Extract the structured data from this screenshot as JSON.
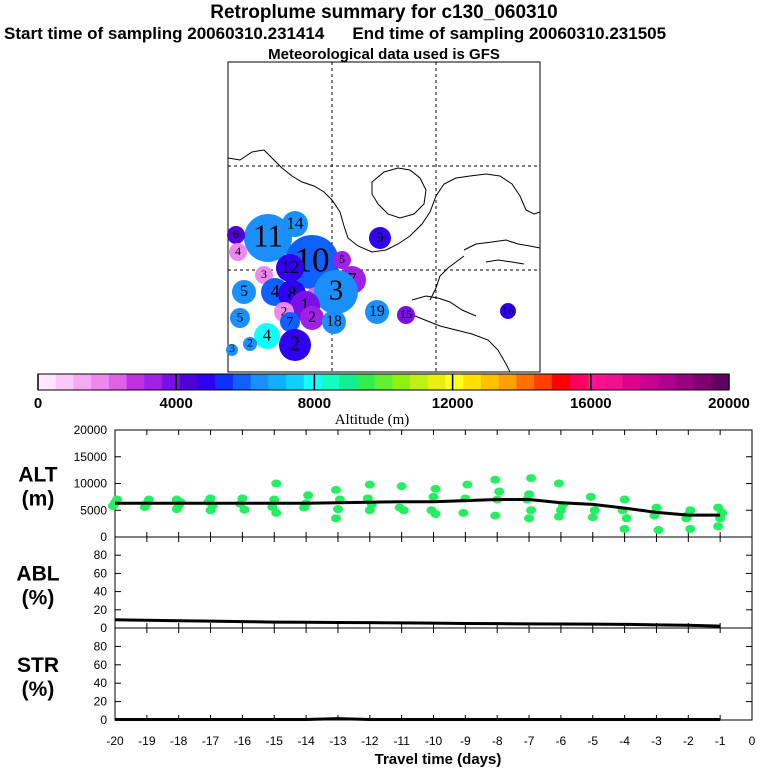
{
  "title": "Retroplume summary for c130_060310",
  "start_label": "Start time of sampling 20060310.231414",
  "end_label": "End time of sampling 20060310.231505",
  "met_label": "Meteorological data used is GFS",
  "colorbar": {
    "xlabel": "Altitude (m)",
    "ticks": [
      "0",
      "4000",
      "8000",
      "12000",
      "16000",
      "20000"
    ],
    "colors": [
      "#ffe6ff",
      "#fbc8fb",
      "#f5aaf5",
      "#ee88ee",
      "#e060e8",
      "#c030e0",
      "#a020e8",
      "#7a10e8",
      "#5000d8",
      "#3000f0",
      "#1030ff",
      "#1060ff",
      "#1a90ff",
      "#10b0ff",
      "#10d0ff",
      "#10ffff",
      "#10ffc0",
      "#10f090",
      "#30f050",
      "#60f030",
      "#90f010",
      "#c0f010",
      "#e8f010",
      "#ffff20",
      "#ffe000",
      "#ffc000",
      "#ffa000",
      "#ff7000",
      "#ff4000",
      "#ff0000",
      "#ff0060",
      "#ff1090",
      "#f01090",
      "#e00090",
      "#c80090",
      "#b00090",
      "#9a0080",
      "#800070",
      "#600060"
    ]
  },
  "map_labels": [
    {
      "n": "11",
      "c": "#1a90ff",
      "r": 24
    },
    {
      "n": "14",
      "c": "#1a90ff",
      "r": 13
    },
    {
      "n": "6",
      "c": "#5000d8",
      "r": 9
    },
    {
      "n": "4",
      "c": "#ee88ee",
      "r": 9
    },
    {
      "n": "10",
      "c": "#1060ff",
      "r": 27
    },
    {
      "n": "9",
      "c": "#3000f0",
      "r": 11
    },
    {
      "n": "3",
      "c": "#ee88ee",
      "r": 9
    },
    {
      "n": "12",
      "c": "#3000f0",
      "r": 14
    },
    {
      "n": "5",
      "c": "#a020e8",
      "r": 9
    },
    {
      "n": "7",
      "c": "#a020e8",
      "r": 14
    },
    {
      "n": "5",
      "c": "#1a90ff",
      "r": 12
    },
    {
      "n": "4",
      "c": "#1060ff",
      "r": 14
    },
    {
      "n": "8",
      "c": "#3000f0",
      "r": 14
    },
    {
      "n": "1",
      "c": "#e060e8",
      "r": 11
    },
    {
      "n": "3",
      "c": "#1a90ff",
      "r": 22
    },
    {
      "n": "1",
      "c": "#7a10e8",
      "r": 15
    },
    {
      "n": "5",
      "c": "#1a90ff",
      "r": 10
    },
    {
      "n": "2",
      "c": "#ee88ee",
      "r": 10
    },
    {
      "n": "7",
      "c": "#1060ff",
      "r": 10
    },
    {
      "n": "2",
      "c": "#a020e8",
      "r": 12
    },
    {
      "n": "18",
      "c": "#1a90ff",
      "r": 12
    },
    {
      "n": "19",
      "c": "#1a90ff",
      "r": 12
    },
    {
      "n": "15",
      "c": "#7a10e8",
      "r": 9
    },
    {
      "n": "16",
      "c": "#3000f0",
      "r": 8
    },
    {
      "n": "4",
      "c": "#10ffff",
      "r": 13
    },
    {
      "n": "2",
      "c": "#3000f0",
      "r": 16
    },
    {
      "n": "2",
      "c": "#1a90ff",
      "r": 7
    },
    {
      "n": "3",
      "c": "#1a90ff",
      "r": 6
    }
  ],
  "chart_data": [
    {
      "type": "scatter",
      "panel": "ALT",
      "ylabel_line1": "ALT",
      "ylabel_line2": "(m)",
      "ylim": [
        0,
        20000
      ],
      "yticks": [
        "0",
        "5000",
        "10000",
        "15000",
        "20000"
      ],
      "xlim": [
        -20,
        0
      ],
      "median_line": {
        "x": [
          -20,
          -19,
          -18,
          -17,
          -16,
          -15,
          -14,
          -13,
          -12,
          -11,
          -10,
          -9,
          -8,
          -7,
          -6,
          -5,
          -4,
          -3,
          -2,
          -1
        ],
        "y": [
          6300,
          6300,
          6300,
          6300,
          6300,
          6300,
          6300,
          6400,
          6500,
          6600,
          6600,
          6800,
          7000,
          7000,
          6400,
          6100,
          5400,
          4600,
          4100,
          4100
        ]
      },
      "points_x": [
        -20,
        -20,
        -20,
        -19,
        -19,
        -19,
        -18,
        -18,
        -18,
        -18,
        -17,
        -17,
        -17,
        -17,
        -16,
        -16,
        -16,
        -15,
        -15,
        -15,
        -15,
        -14,
        -14,
        -14,
        -13,
        -13,
        -13,
        -13,
        -12,
        -12,
        -12,
        -12,
        -11,
        -11,
        -11,
        -10,
        -10,
        -10,
        -10,
        -9,
        -9,
        -9,
        -8,
        -8,
        -8,
        -8,
        -7,
        -7,
        -7,
        -7,
        -7,
        -6,
        -6,
        -6,
        -6,
        -5,
        -5,
        -5,
        -4,
        -4,
        -4,
        -4,
        -3,
        -3,
        -3,
        -2,
        -2,
        -2,
        -2,
        -1,
        -1,
        -1,
        -1
      ],
      "points_y": [
        5800,
        6400,
        7000,
        5600,
        6300,
        7000,
        5200,
        5900,
        6500,
        7000,
        5000,
        5900,
        6600,
        7200,
        5100,
        6200,
        7200,
        4500,
        5600,
        7000,
        10000,
        5500,
        6300,
        7800,
        3500,
        5200,
        7000,
        8800,
        5000,
        6100,
        7200,
        9800,
        5000,
        5500,
        9500,
        4300,
        5000,
        7500,
        9000,
        4500,
        7200,
        9800,
        4000,
        7000,
        8500,
        10700,
        3500,
        5000,
        7000,
        8000,
        11000,
        3800,
        5000,
        6000,
        10000,
        3700,
        5000,
        7500,
        1500,
        3500,
        5000,
        7000,
        1300,
        4000,
        5500,
        1500,
        3500,
        4200,
        5000,
        2000,
        3500,
        4500,
        5500
      ]
    },
    {
      "type": "line",
      "panel": "ABL",
      "ylabel_line1": "ABL",
      "ylabel_line2": "(%)",
      "ylim": [
        0,
        100
      ],
      "yticks": [
        "0",
        "20",
        "40",
        "60",
        "80"
      ],
      "x": [
        -20,
        -19,
        -18,
        -17,
        -16,
        -15,
        -14,
        -13,
        -12,
        -11,
        -10,
        -9,
        -8,
        -7,
        -6,
        -5,
        -4,
        -3,
        -2,
        -1
      ],
      "y": [
        9,
        8.5,
        8,
        7.5,
        7,
        6.5,
        6.3,
        6.1,
        5.9,
        5.7,
        5.3,
        5,
        4.8,
        4.6,
        4.4,
        4.2,
        4,
        3.5,
        3,
        2
      ]
    },
    {
      "type": "line",
      "panel": "STR",
      "ylabel_line1": "STR",
      "ylabel_line2": "(%)",
      "ylim": [
        0,
        100
      ],
      "yticks": [
        "0",
        "20",
        "40",
        "60",
        "80"
      ],
      "x": [
        -20,
        -19,
        -18,
        -17,
        -16,
        -15,
        -14,
        -13,
        -12,
        -11,
        -10,
        -9,
        -8,
        -7,
        -6,
        -5,
        -4,
        -3,
        -2,
        -1
      ],
      "y": [
        0.5,
        0.5,
        0.5,
        0.5,
        0.5,
        0.5,
        0.5,
        1.5,
        0.5,
        0.5,
        0.5,
        0.5,
        0.5,
        0.5,
        0.5,
        0.5,
        0.5,
        0.5,
        0.5,
        0.5
      ]
    }
  ],
  "xaxis": {
    "title": "Travel time (days)",
    "ticks": [
      "-20",
      "-19",
      "-18",
      "-17",
      "-16",
      "-15",
      "-14",
      "-13",
      "-12",
      "-11",
      "-10",
      "-9",
      "-8",
      "-7",
      "-6",
      "-5",
      "-4",
      "-3",
      "-2",
      "-1",
      "0"
    ]
  }
}
